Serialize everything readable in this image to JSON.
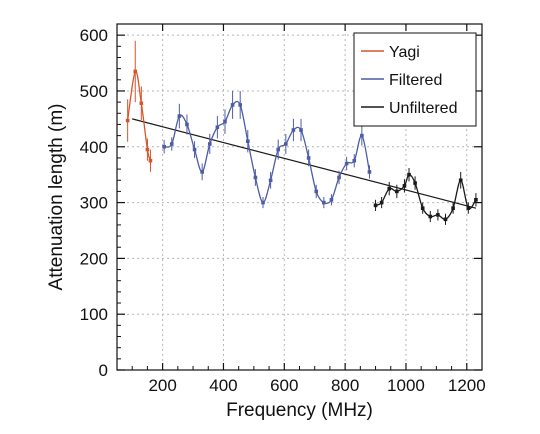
{
  "chart_data": {
    "type": "line",
    "title": "",
    "xlabel": "Frequency (MHz)",
    "ylabel": "Attenuation length (m)",
    "xlim": [
      50,
      1250
    ],
    "ylim": [
      0,
      620
    ],
    "x_ticks": [
      "200",
      "400",
      "600",
      "800",
      "1000",
      "1200"
    ],
    "y_ticks": [
      "0",
      "100",
      "200",
      "300",
      "400",
      "500",
      "600"
    ],
    "grid": true,
    "legend_position": "top-right",
    "legend": [
      "Yagi",
      "Filtered",
      "Unfiltered"
    ],
    "series": [
      {
        "name": "Yagi",
        "color": "#d9532b",
        "points": [
          {
            "x": 85,
            "y": 447,
            "err": 38
          },
          {
            "x": 110,
            "y": 535,
            "err": 55
          },
          {
            "x": 130,
            "y": 478,
            "err": 30
          },
          {
            "x": 150,
            "y": 395,
            "err": 20
          },
          {
            "x": 160,
            "y": 375,
            "err": 20
          }
        ]
      },
      {
        "name": "Filtered",
        "color": "#4d5ca6",
        "points": [
          {
            "x": 205,
            "y": 400,
            "err": 12
          },
          {
            "x": 230,
            "y": 405,
            "err": 12
          },
          {
            "x": 255,
            "y": 455,
            "err": 22
          },
          {
            "x": 280,
            "y": 440,
            "err": 18
          },
          {
            "x": 305,
            "y": 395,
            "err": 15
          },
          {
            "x": 330,
            "y": 355,
            "err": 15
          },
          {
            "x": 355,
            "y": 405,
            "err": 18
          },
          {
            "x": 380,
            "y": 435,
            "err": 20
          },
          {
            "x": 405,
            "y": 445,
            "err": 22
          },
          {
            "x": 430,
            "y": 475,
            "err": 25
          },
          {
            "x": 455,
            "y": 475,
            "err": 25
          },
          {
            "x": 480,
            "y": 410,
            "err": 20
          },
          {
            "x": 505,
            "y": 345,
            "err": 15
          },
          {
            "x": 530,
            "y": 300,
            "err": 10
          },
          {
            "x": 555,
            "y": 340,
            "err": 15
          },
          {
            "x": 580,
            "y": 395,
            "err": 18
          },
          {
            "x": 605,
            "y": 405,
            "err": 18
          },
          {
            "x": 630,
            "y": 430,
            "err": 20
          },
          {
            "x": 655,
            "y": 430,
            "err": 20
          },
          {
            "x": 680,
            "y": 380,
            "err": 15
          },
          {
            "x": 705,
            "y": 320,
            "err": 12
          },
          {
            "x": 730,
            "y": 300,
            "err": 10
          },
          {
            "x": 755,
            "y": 305,
            "err": 10
          },
          {
            "x": 780,
            "y": 345,
            "err": 12
          },
          {
            "x": 805,
            "y": 370,
            "err": 12
          },
          {
            "x": 830,
            "y": 375,
            "err": 12
          },
          {
            "x": 855,
            "y": 420,
            "err": 18
          },
          {
            "x": 880,
            "y": 355,
            "err": 12
          }
        ]
      },
      {
        "name": "Unfiltered",
        "color": "#1a1a1a",
        "points": [
          {
            "x": 900,
            "y": 295,
            "err": 10
          },
          {
            "x": 920,
            "y": 300,
            "err": 10
          },
          {
            "x": 945,
            "y": 325,
            "err": 12
          },
          {
            "x": 970,
            "y": 320,
            "err": 12
          },
          {
            "x": 995,
            "y": 330,
            "err": 12
          },
          {
            "x": 1010,
            "y": 350,
            "err": 12
          },
          {
            "x": 1030,
            "y": 335,
            "err": 12
          },
          {
            "x": 1055,
            "y": 290,
            "err": 10
          },
          {
            "x": 1080,
            "y": 275,
            "err": 10
          },
          {
            "x": 1105,
            "y": 278,
            "err": 10
          },
          {
            "x": 1130,
            "y": 270,
            "err": 10
          },
          {
            "x": 1155,
            "y": 290,
            "err": 10
          },
          {
            "x": 1180,
            "y": 340,
            "err": 15
          },
          {
            "x": 1205,
            "y": 290,
            "err": 10
          },
          {
            "x": 1230,
            "y": 305,
            "err": 12
          }
        ]
      }
    ],
    "trend_line": {
      "x": [
        100,
        1230
      ],
      "y": [
        450,
        290
      ]
    }
  }
}
